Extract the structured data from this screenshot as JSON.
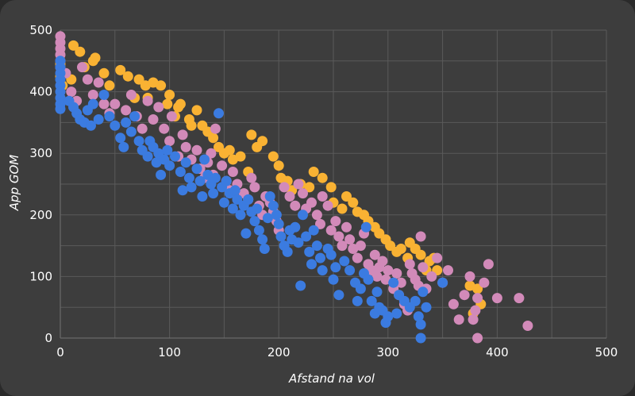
{
  "chart_data": {
    "type": "scatter",
    "title": "",
    "xlabel": "Afstand na vol",
    "ylabel": "App GOM",
    "xlim": [
      0,
      500
    ],
    "ylim": [
      0,
      500
    ],
    "xticks": [
      "0",
      "100",
      "200",
      "300",
      "400",
      "500"
    ],
    "yticks": [
      "0",
      "100",
      "200",
      "300",
      "400",
      "500"
    ],
    "grid": true,
    "legend": "none",
    "series": [
      {
        "name": "orange",
        "color": "#f9b233",
        "points": [
          [
            0,
            445
          ],
          [
            0,
            425
          ],
          [
            2,
            410
          ],
          [
            10,
            420
          ],
          [
            12,
            475
          ],
          [
            18,
            465
          ],
          [
            22,
            440
          ],
          [
            30,
            450
          ],
          [
            32,
            455
          ],
          [
            40,
            430
          ],
          [
            45,
            410
          ],
          [
            55,
            435
          ],
          [
            62,
            425
          ],
          [
            68,
            390
          ],
          [
            72,
            420
          ],
          [
            78,
            410
          ],
          [
            80,
            390
          ],
          [
            85,
            415
          ],
          [
            92,
            410
          ],
          [
            98,
            380
          ],
          [
            100,
            395
          ],
          [
            105,
            360
          ],
          [
            108,
            375
          ],
          [
            110,
            380
          ],
          [
            118,
            355
          ],
          [
            120,
            345
          ],
          [
            125,
            370
          ],
          [
            130,
            345
          ],
          [
            135,
            335
          ],
          [
            140,
            325
          ],
          [
            145,
            310
          ],
          [
            150,
            300
          ],
          [
            155,
            305
          ],
          [
            158,
            290
          ],
          [
            165,
            295
          ],
          [
            172,
            270
          ],
          [
            175,
            330
          ],
          [
            180,
            310
          ],
          [
            185,
            320
          ],
          [
            195,
            295
          ],
          [
            200,
            280
          ],
          [
            202,
            260
          ],
          [
            208,
            255
          ],
          [
            212,
            240
          ],
          [
            220,
            250
          ],
          [
            228,
            245
          ],
          [
            232,
            270
          ],
          [
            240,
            260
          ],
          [
            248,
            245
          ],
          [
            250,
            220
          ],
          [
            258,
            210
          ],
          [
            262,
            230
          ],
          [
            268,
            220
          ],
          [
            272,
            205
          ],
          [
            278,
            200
          ],
          [
            282,
            190
          ],
          [
            288,
            180
          ],
          [
            292,
            170
          ],
          [
            298,
            160
          ],
          [
            302,
            150
          ],
          [
            308,
            140
          ],
          [
            312,
            145
          ],
          [
            318,
            130
          ],
          [
            320,
            155
          ],
          [
            325,
            145
          ],
          [
            330,
            135
          ],
          [
            335,
            110
          ],
          [
            338,
            125
          ],
          [
            342,
            130
          ],
          [
            345,
            110
          ],
          [
            375,
            85
          ],
          [
            382,
            80
          ],
          [
            385,
            55
          ],
          [
            378,
            40
          ]
        ]
      },
      {
        "name": "pink",
        "color": "#d28ab9",
        "points": [
          [
            0,
            490
          ],
          [
            0,
            480
          ],
          [
            0,
            470
          ],
          [
            0,
            460
          ],
          [
            0,
            450
          ],
          [
            0,
            440
          ],
          [
            5,
            430
          ],
          [
            10,
            400
          ],
          [
            15,
            385
          ],
          [
            20,
            440
          ],
          [
            25,
            420
          ],
          [
            30,
            395
          ],
          [
            35,
            415
          ],
          [
            40,
            380
          ],
          [
            45,
            365
          ],
          [
            50,
            380
          ],
          [
            60,
            370
          ],
          [
            65,
            395
          ],
          [
            70,
            360
          ],
          [
            75,
            340
          ],
          [
            80,
            385
          ],
          [
            85,
            355
          ],
          [
            90,
            375
          ],
          [
            95,
            340
          ],
          [
            100,
            320
          ],
          [
            102,
            360
          ],
          [
            108,
            295
          ],
          [
            112,
            330
          ],
          [
            115,
            310
          ],
          [
            120,
            290
          ],
          [
            125,
            305
          ],
          [
            128,
            275
          ],
          [
            132,
            260
          ],
          [
            135,
            285
          ],
          [
            138,
            300
          ],
          [
            140,
            265
          ],
          [
            142,
            340
          ],
          [
            148,
            280
          ],
          [
            152,
            255
          ],
          [
            155,
            240
          ],
          [
            158,
            270
          ],
          [
            162,
            250
          ],
          [
            168,
            235
          ],
          [
            172,
            225
          ],
          [
            175,
            260
          ],
          [
            178,
            245
          ],
          [
            182,
            215
          ],
          [
            185,
            200
          ],
          [
            188,
            230
          ],
          [
            192,
            220
          ],
          [
            195,
            205
          ],
          [
            198,
            190
          ],
          [
            200,
            175
          ],
          [
            205,
            245
          ],
          [
            210,
            230
          ],
          [
            215,
            215
          ],
          [
            218,
            250
          ],
          [
            222,
            235
          ],
          [
            225,
            210
          ],
          [
            230,
            220
          ],
          [
            235,
            200
          ],
          [
            238,
            185
          ],
          [
            240,
            230
          ],
          [
            245,
            215
          ],
          [
            248,
            175
          ],
          [
            252,
            190
          ],
          [
            255,
            165
          ],
          [
            258,
            150
          ],
          [
            262,
            180
          ],
          [
            265,
            160
          ],
          [
            268,
            145
          ],
          [
            272,
            130
          ],
          [
            275,
            150
          ],
          [
            278,
            170
          ],
          [
            282,
            120
          ],
          [
            285,
            110
          ],
          [
            288,
            135
          ],
          [
            290,
            100
          ],
          [
            292,
            115
          ],
          [
            295,
            125
          ],
          [
            298,
            95
          ],
          [
            300,
            110
          ],
          [
            305,
            80
          ],
          [
            308,
            105
          ],
          [
            310,
            70
          ],
          [
            312,
            90
          ],
          [
            315,
            55
          ],
          [
            318,
            45
          ],
          [
            320,
            120
          ],
          [
            322,
            105
          ],
          [
            325,
            95
          ],
          [
            328,
            85
          ],
          [
            330,
            165
          ],
          [
            332,
            115
          ],
          [
            335,
            80
          ],
          [
            340,
            100
          ],
          [
            345,
            130
          ],
          [
            350,
            90
          ],
          [
            355,
            110
          ],
          [
            360,
            55
          ],
          [
            365,
            30
          ],
          [
            370,
            70
          ],
          [
            375,
            100
          ],
          [
            378,
            30
          ],
          [
            380,
            45
          ],
          [
            382,
            65
          ],
          [
            388,
            90
          ],
          [
            392,
            120
          ],
          [
            400,
            65
          ],
          [
            420,
            65
          ],
          [
            428,
            20
          ],
          [
            382,
            0
          ]
        ]
      },
      {
        "name": "blue",
        "color": "#3b7be0",
        "points": [
          [
            0,
            450
          ],
          [
            0,
            440
          ],
          [
            0,
            430
          ],
          [
            0,
            420
          ],
          [
            0,
            410
          ],
          [
            0,
            400
          ],
          [
            0,
            390
          ],
          [
            0,
            380
          ],
          [
            0,
            372
          ],
          [
            8,
            385
          ],
          [
            12,
            375
          ],
          [
            15,
            365
          ],
          [
            18,
            355
          ],
          [
            22,
            350
          ],
          [
            25,
            370
          ],
          [
            28,
            345
          ],
          [
            30,
            380
          ],
          [
            35,
            355
          ],
          [
            40,
            395
          ],
          [
            45,
            360
          ],
          [
            50,
            345
          ],
          [
            55,
            325
          ],
          [
            58,
            310
          ],
          [
            60,
            350
          ],
          [
            65,
            335
          ],
          [
            68,
            360
          ],
          [
            72,
            320
          ],
          [
            75,
            305
          ],
          [
            80,
            295
          ],
          [
            82,
            320
          ],
          [
            85,
            310
          ],
          [
            88,
            285
          ],
          [
            90,
            300
          ],
          [
            92,
            265
          ],
          [
            95,
            290
          ],
          [
            98,
            305
          ],
          [
            100,
            280
          ],
          [
            105,
            295
          ],
          [
            110,
            270
          ],
          [
            112,
            240
          ],
          [
            115,
            285
          ],
          [
            118,
            260
          ],
          [
            120,
            245
          ],
          [
            125,
            275
          ],
          [
            128,
            255
          ],
          [
            130,
            230
          ],
          [
            132,
            290
          ],
          [
            135,
            265
          ],
          [
            138,
            250
          ],
          [
            140,
            235
          ],
          [
            142,
            260
          ],
          [
            145,
            365
          ],
          [
            148,
            245
          ],
          [
            150,
            220
          ],
          [
            152,
            255
          ],
          [
            155,
            235
          ],
          [
            158,
            210
          ],
          [
            160,
            240
          ],
          [
            162,
            225
          ],
          [
            165,
            200
          ],
          [
            168,
            215
          ],
          [
            170,
            170
          ],
          [
            172,
            225
          ],
          [
            175,
            205
          ],
          [
            178,
            190
          ],
          [
            180,
            210
          ],
          [
            182,
            175
          ],
          [
            185,
            160
          ],
          [
            187,
            145
          ],
          [
            190,
            195
          ],
          [
            192,
            230
          ],
          [
            195,
            215
          ],
          [
            198,
            200
          ],
          [
            200,
            185
          ],
          [
            202,
            165
          ],
          [
            205,
            150
          ],
          [
            208,
            140
          ],
          [
            210,
            175
          ],
          [
            212,
            160
          ],
          [
            215,
            180
          ],
          [
            218,
            155
          ],
          [
            220,
            85
          ],
          [
            222,
            200
          ],
          [
            225,
            165
          ],
          [
            228,
            140
          ],
          [
            230,
            120
          ],
          [
            232,
            175
          ],
          [
            235,
            150
          ],
          [
            238,
            130
          ],
          [
            240,
            110
          ],
          [
            245,
            145
          ],
          [
            248,
            135
          ],
          [
            250,
            95
          ],
          [
            252,
            115
          ],
          [
            255,
            70
          ],
          [
            260,
            125
          ],
          [
            265,
            110
          ],
          [
            270,
            90
          ],
          [
            272,
            60
          ],
          [
            275,
            80
          ],
          [
            278,
            105
          ],
          [
            280,
            180
          ],
          [
            282,
            95
          ],
          [
            285,
            60
          ],
          [
            288,
            40
          ],
          [
            290,
            75
          ],
          [
            292,
            50
          ],
          [
            295,
            45
          ],
          [
            298,
            25
          ],
          [
            300,
            35
          ],
          [
            305,
            90
          ],
          [
            308,
            40
          ],
          [
            310,
            70
          ],
          [
            315,
            60
          ],
          [
            320,
            50
          ],
          [
            325,
            60
          ],
          [
            328,
            35
          ],
          [
            330,
            22
          ],
          [
            330,
            0
          ],
          [
            332,
            75
          ],
          [
            335,
            50
          ],
          [
            350,
            90
          ]
        ]
      }
    ]
  }
}
